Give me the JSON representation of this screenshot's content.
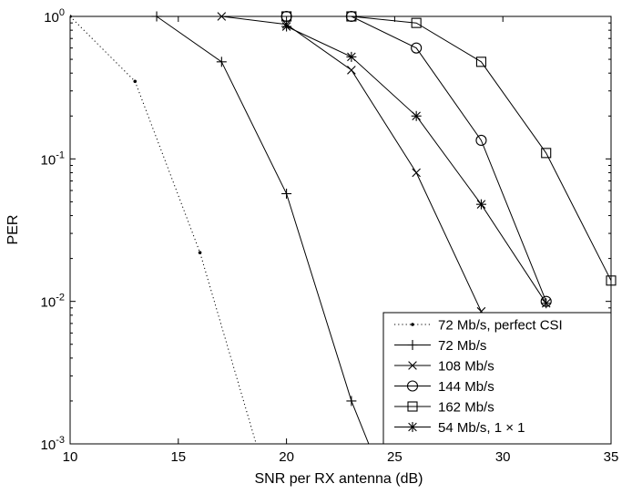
{
  "chart_data": {
    "type": "line",
    "title": "",
    "xlabel": "SNR per RX antenna (dB)",
    "ylabel": "PER",
    "xlim": [
      10,
      35
    ],
    "ylim": [
      0.001,
      1
    ],
    "yscale": "log",
    "grid": false,
    "legend_position": "bottom-right",
    "x_ticks": [
      10,
      15,
      20,
      25,
      30,
      35
    ],
    "y_ticks": [
      {
        "value": 1,
        "base": "10",
        "exp": "0"
      },
      {
        "value": 0.1,
        "base": "10",
        "exp": "-1"
      },
      {
        "value": 0.01,
        "base": "10",
        "exp": "-2"
      },
      {
        "value": 0.001,
        "base": "10",
        "exp": "-3"
      }
    ],
    "series": [
      {
        "name": "72 Mb/s, perfect CSI",
        "marker": "dot",
        "line": "dotted",
        "x": [
          10,
          13,
          16,
          18.6
        ],
        "y": [
          1,
          0.35,
          0.022,
          0.001
        ]
      },
      {
        "name": "72 Mb/s",
        "marker": "plus",
        "line": "solid",
        "x": [
          14,
          17,
          20,
          23,
          23.8
        ],
        "y": [
          1,
          0.48,
          0.057,
          0.002,
          0.001
        ]
      },
      {
        "name": "108 Mb/s",
        "marker": "x",
        "line": "solid",
        "x": [
          17,
          20,
          23,
          26,
          29
        ],
        "y": [
          1,
          0.88,
          0.42,
          0.08,
          0.0085
        ]
      },
      {
        "name": "144 Mb/s",
        "marker": "circle",
        "line": "solid",
        "x": [
          20,
          23,
          26,
          29,
          32
        ],
        "y": [
          1,
          1,
          0.6,
          0.135,
          0.01
        ]
      },
      {
        "name": "162 Mb/s",
        "marker": "square",
        "line": "solid",
        "x": [
          20,
          23,
          26,
          29,
          32,
          35
        ],
        "y": [
          1,
          1,
          0.9,
          0.48,
          0.11,
          0.014
        ]
      },
      {
        "name": "54 Mb/s, 1 × 1",
        "marker": "star",
        "line": "solid",
        "x": [
          20,
          23,
          26,
          29,
          32
        ],
        "y": [
          0.85,
          0.52,
          0.2,
          0.048,
          0.0097
        ]
      }
    ]
  }
}
